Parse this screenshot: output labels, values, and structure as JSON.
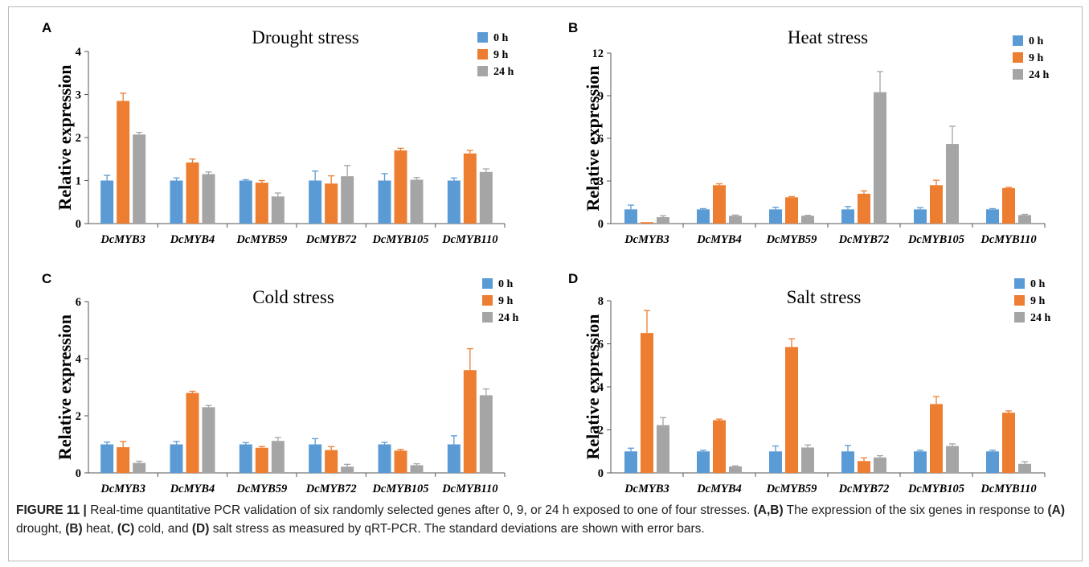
{
  "colors": {
    "0 h": "#5b9bd5",
    "9 h": "#ed7d31",
    "24 h": "#a5a5a5"
  },
  "chart_data": [
    {
      "type": "bar",
      "panel_label": "A",
      "title": "Drought stress",
      "ylabel": "Relative expression",
      "ylim": [
        0,
        4
      ],
      "yticks": [
        0,
        1,
        2,
        3,
        4
      ],
      "legend_position": "top-right",
      "categories": [
        "DcMYB3",
        "DcMYB4",
        "DcMYB59",
        "DcMYB72",
        "DcMYB105",
        "DcMYB110"
      ],
      "series": [
        {
          "name": "0 h",
          "values": [
            1.0,
            1.0,
            1.0,
            1.0,
            1.0,
            1.0
          ],
          "errors": [
            0.12,
            0.06,
            0.02,
            0.22,
            0.16,
            0.06
          ]
        },
        {
          "name": "9 h",
          "values": [
            2.85,
            1.42,
            0.95,
            0.93,
            1.7,
            1.63
          ],
          "errors": [
            0.18,
            0.08,
            0.05,
            0.18,
            0.05,
            0.07
          ]
        },
        {
          "name": "24 h",
          "values": [
            2.07,
            1.15,
            0.63,
            1.1,
            1.02,
            1.2
          ],
          "errors": [
            0.05,
            0.05,
            0.08,
            0.25,
            0.05,
            0.07
          ]
        }
      ]
    },
    {
      "type": "bar",
      "panel_label": "B",
      "title": "Heat stress",
      "ylabel": "Relative expression",
      "ylim": [
        0,
        12
      ],
      "yticks": [
        0,
        3,
        6,
        9,
        12
      ],
      "legend_position": "top-right",
      "categories": [
        "DcMYB3",
        "DcMYB4",
        "DcMYB59",
        "DcMYB72",
        "DcMYB105",
        "DcMYB110"
      ],
      "series": [
        {
          "name": "0 h",
          "values": [
            1.0,
            1.0,
            1.0,
            1.0,
            1.0,
            1.0
          ],
          "errors": [
            0.3,
            0.05,
            0.15,
            0.2,
            0.12,
            0.05
          ]
        },
        {
          "name": "9 h",
          "values": [
            0.1,
            2.7,
            1.85,
            2.1,
            2.7,
            2.5
          ],
          "errors": [
            0.0,
            0.1,
            0.05,
            0.2,
            0.35,
            0.05
          ]
        },
        {
          "name": "24 h",
          "values": [
            0.45,
            0.55,
            0.55,
            9.25,
            5.6,
            0.6
          ],
          "errors": [
            0.1,
            0.05,
            0.03,
            1.45,
            1.25,
            0.05
          ]
        }
      ]
    },
    {
      "type": "bar",
      "panel_label": "C",
      "title": "Cold stress",
      "ylabel": "Relative expression",
      "ylim": [
        0,
        6
      ],
      "yticks": [
        0,
        2,
        4,
        6
      ],
      "legend_position": "top-right",
      "categories": [
        "DcMYB3",
        "DcMYB4",
        "DcMYB59",
        "DcMYB72",
        "DcMYB105",
        "DcMYB110"
      ],
      "series": [
        {
          "name": "0 h",
          "values": [
            1.0,
            1.0,
            1.0,
            1.0,
            1.0,
            1.0
          ],
          "errors": [
            0.08,
            0.1,
            0.06,
            0.2,
            0.07,
            0.3
          ]
        },
        {
          "name": "9 h",
          "values": [
            0.9,
            2.8,
            0.88,
            0.8,
            0.78,
            3.6
          ],
          "errors": [
            0.2,
            0.06,
            0.04,
            0.12,
            0.04,
            0.75
          ]
        },
        {
          "name": "24 h",
          "values": [
            0.35,
            2.3,
            1.12,
            0.22,
            0.27,
            2.72
          ],
          "errors": [
            0.06,
            0.06,
            0.12,
            0.08,
            0.05,
            0.22
          ]
        }
      ]
    },
    {
      "type": "bar",
      "panel_label": "D",
      "title": "Salt stress",
      "ylabel": "Relative expression",
      "ylim": [
        0,
        8
      ],
      "yticks": [
        0,
        2,
        4,
        6,
        8
      ],
      "legend_position": "top-right",
      "categories": [
        "DcMYB3",
        "DcMYB4",
        "DcMYB59",
        "DcMYB72",
        "DcMYB105",
        "DcMYB110"
      ],
      "series": [
        {
          "name": "0 h",
          "values": [
            1.0,
            1.0,
            1.0,
            1.0,
            1.0,
            1.0
          ],
          "errors": [
            0.15,
            0.05,
            0.25,
            0.28,
            0.05,
            0.05
          ]
        },
        {
          "name": "9 h",
          "values": [
            6.5,
            2.45,
            5.85,
            0.55,
            3.2,
            2.8
          ],
          "errors": [
            1.05,
            0.05,
            0.38,
            0.15,
            0.35,
            0.08
          ]
        },
        {
          "name": "24 h",
          "values": [
            2.22,
            0.3,
            1.18,
            0.72,
            1.25,
            0.42
          ],
          "errors": [
            0.35,
            0.03,
            0.12,
            0.08,
            0.1,
            0.1
          ]
        }
      ]
    }
  ],
  "caption": {
    "figure_label": "FIGURE 11 |",
    "t1": " Real-time quantitative PCR validation of six randomly selected genes after 0, 9, or 24 h exposed to one of four stresses. ",
    "b1": "(A,B)",
    "t2": " The expression of the six genes in response to ",
    "b2": "(A)",
    "t3": " drought, ",
    "b3": "(B)",
    "t4": " heat, ",
    "b4": "(C)",
    "t5": " cold, and ",
    "b5": "(D)",
    "t6": " salt stress as measured by qRT-PCR. The standard deviations are shown with error bars."
  }
}
